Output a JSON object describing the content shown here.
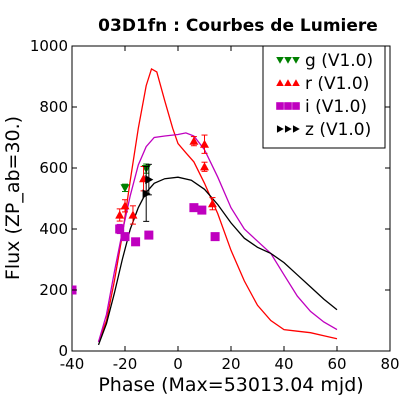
{
  "chart_data": {
    "type": "scatter",
    "title": "03D1fn : Courbes de Lumiere",
    "xlabel": "Phase (Max=53013.04 mjd)",
    "ylabel": "Flux (ZP_ab=30.)",
    "xlim": [
      -40,
      80
    ],
    "ylim": [
      0,
      1000
    ],
    "x_ticks": [
      -40,
      -20,
      0,
      20,
      40,
      60,
      80
    ],
    "y_ticks": [
      0,
      200,
      400,
      600,
      800,
      1000
    ],
    "x_tick_labels": [
      "-40",
      "-20",
      "0",
      "20",
      "40",
      "60",
      "80"
    ],
    "y_tick_labels": [
      "0",
      "200",
      "400",
      "600",
      "800",
      "1000"
    ],
    "grid": false,
    "legend_position": "top-right",
    "series": [
      {
        "name": "g (V1.0)",
        "color": "#008000",
        "marker": "triangle-down",
        "points": [
          {
            "x": -20,
            "y": 535,
            "err": 12
          },
          {
            "x": -12,
            "y": 598,
            "err": 15
          }
        ],
        "curve": []
      },
      {
        "name": "r (V1.0)",
        "color": "#ff0000",
        "marker": "triangle-up",
        "points": [
          {
            "x": -22,
            "y": 446,
            "err": 20
          },
          {
            "x": -20,
            "y": 476,
            "err": 20
          },
          {
            "x": -17,
            "y": 446,
            "err": 30
          },
          {
            "x": -13,
            "y": 565,
            "err": 40
          },
          {
            "x": 6,
            "y": 688,
            "err": 15
          },
          {
            "x": 10,
            "y": 678,
            "err": 30
          },
          {
            "x": 10,
            "y": 604,
            "err": 15
          },
          {
            "x": 13,
            "y": 483,
            "err": 20
          }
        ],
        "curve": [
          [
            -30,
            30
          ],
          [
            -27,
            100
          ],
          [
            -24,
            230
          ],
          [
            -21,
            380
          ],
          [
            -18,
            560
          ],
          [
            -15,
            730
          ],
          [
            -12,
            870
          ],
          [
            -10,
            925
          ],
          [
            -8,
            915
          ],
          [
            -5,
            820
          ],
          [
            -2,
            730
          ],
          [
            0,
            680
          ],
          [
            3,
            650
          ],
          [
            6,
            620
          ],
          [
            10,
            550
          ],
          [
            15,
            450
          ],
          [
            20,
            330
          ],
          [
            25,
            230
          ],
          [
            30,
            150
          ],
          [
            35,
            100
          ],
          [
            40,
            70
          ],
          [
            45,
            65
          ],
          [
            50,
            60
          ],
          [
            55,
            50
          ],
          [
            60,
            40
          ]
        ]
      },
      {
        "name": "i (V1.0)",
        "color": "#bf00bf",
        "marker": "square",
        "points": [
          {
            "x": -40,
            "y": 200,
            "err": 5
          },
          {
            "x": -22,
            "y": 400,
            "err": 15
          },
          {
            "x": -20,
            "y": 375,
            "err": 12
          },
          {
            "x": -16,
            "y": 358,
            "err": 12
          },
          {
            "x": -11,
            "y": 380,
            "err": 12
          },
          {
            "x": 6,
            "y": 470,
            "err": 10
          },
          {
            "x": 9,
            "y": 462,
            "err": 12
          },
          {
            "x": 14,
            "y": 375,
            "err": 8
          }
        ],
        "curve": [
          [
            -30,
            30
          ],
          [
            -27,
            120
          ],
          [
            -24,
            260
          ],
          [
            -21,
            390
          ],
          [
            -18,
            510
          ],
          [
            -15,
            610
          ],
          [
            -12,
            670
          ],
          [
            -9,
            700
          ],
          [
            -5,
            705
          ],
          [
            0,
            710
          ],
          [
            3,
            715
          ],
          [
            6,
            705
          ],
          [
            10,
            660
          ],
          [
            15,
            570
          ],
          [
            20,
            470
          ],
          [
            25,
            400
          ],
          [
            30,
            360
          ],
          [
            35,
            320
          ],
          [
            40,
            250
          ],
          [
            45,
            180
          ],
          [
            50,
            130
          ],
          [
            55,
            95
          ],
          [
            60,
            70
          ]
        ]
      },
      {
        "name": "z (V1.0)",
        "color": "#000000",
        "marker": "triangle-right",
        "points": [
          {
            "x": -12,
            "y": 515,
            "err": 90
          },
          {
            "x": -11,
            "y": 562,
            "err": 50
          }
        ],
        "curve": [
          [
            -30,
            20
          ],
          [
            -27,
            90
          ],
          [
            -24,
            190
          ],
          [
            -21,
            300
          ],
          [
            -18,
            400
          ],
          [
            -15,
            470
          ],
          [
            -12,
            520
          ],
          [
            -9,
            550
          ],
          [
            -5,
            565
          ],
          [
            0,
            570
          ],
          [
            5,
            560
          ],
          [
            10,
            530
          ],
          [
            15,
            480
          ],
          [
            20,
            420
          ],
          [
            25,
            370
          ],
          [
            30,
            340
          ],
          [
            35,
            320
          ],
          [
            40,
            290
          ],
          [
            45,
            250
          ],
          [
            50,
            210
          ],
          [
            55,
            170
          ],
          [
            60,
            135
          ]
        ]
      }
    ]
  }
}
